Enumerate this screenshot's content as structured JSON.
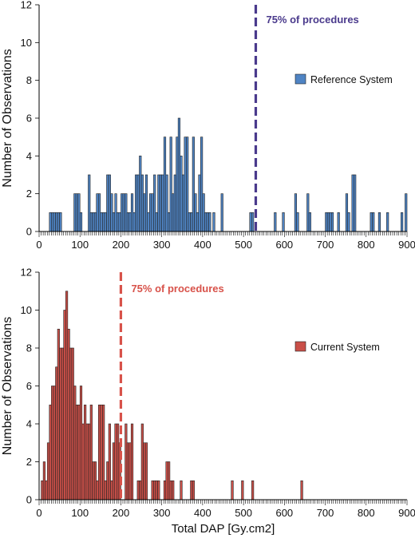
{
  "chart_data": [
    {
      "type": "bar",
      "ylabel": "Number of Observations",
      "xlabel": "",
      "xlim": [
        0,
        900
      ],
      "ylim": [
        0,
        12
      ],
      "bin_width": 5,
      "xticks": [
        "0",
        "100",
        "200",
        "300",
        "400",
        "500",
        "600",
        "700",
        "800",
        "900"
      ],
      "yticks": [
        "0",
        "2",
        "4",
        "6",
        "8",
        "10",
        "12"
      ],
      "legend": {
        "label": "Reference System",
        "placement": "right"
      },
      "bar_color": "#4f84c4",
      "marker": {
        "x": 530,
        "label": "75% of procedures",
        "color": "#4a3a8c"
      },
      "bins": [
        {
          "x": 25,
          "value": 1
        },
        {
          "x": 30,
          "value": 1
        },
        {
          "x": 35,
          "value": 1
        },
        {
          "x": 40,
          "value": 1
        },
        {
          "x": 45,
          "value": 1
        },
        {
          "x": 50,
          "value": 1
        },
        {
          "x": 85,
          "value": 2
        },
        {
          "x": 90,
          "value": 2
        },
        {
          "x": 95,
          "value": 2
        },
        {
          "x": 100,
          "value": 1
        },
        {
          "x": 120,
          "value": 3
        },
        {
          "x": 125,
          "value": 1
        },
        {
          "x": 130,
          "value": 1
        },
        {
          "x": 135,
          "value": 1
        },
        {
          "x": 140,
          "value": 2
        },
        {
          "x": 145,
          "value": 2
        },
        {
          "x": 150,
          "value": 1
        },
        {
          "x": 155,
          "value": 1
        },
        {
          "x": 160,
          "value": 1
        },
        {
          "x": 165,
          "value": 3
        },
        {
          "x": 170,
          "value": 3
        },
        {
          "x": 175,
          "value": 2
        },
        {
          "x": 180,
          "value": 1
        },
        {
          "x": 185,
          "value": 2
        },
        {
          "x": 190,
          "value": 1
        },
        {
          "x": 195,
          "value": 1
        },
        {
          "x": 200,
          "value": 2
        },
        {
          "x": 205,
          "value": 2
        },
        {
          "x": 210,
          "value": 2
        },
        {
          "x": 215,
          "value": 1
        },
        {
          "x": 220,
          "value": 1
        },
        {
          "x": 225,
          "value": 2
        },
        {
          "x": 230,
          "value": 1
        },
        {
          "x": 235,
          "value": 3
        },
        {
          "x": 240,
          "value": 3
        },
        {
          "x": 245,
          "value": 4
        },
        {
          "x": 250,
          "value": 3
        },
        {
          "x": 255,
          "value": 2
        },
        {
          "x": 260,
          "value": 3
        },
        {
          "x": 265,
          "value": 1
        },
        {
          "x": 270,
          "value": 2
        },
        {
          "x": 275,
          "value": 2
        },
        {
          "x": 280,
          "value": 3
        },
        {
          "x": 285,
          "value": 1
        },
        {
          "x": 290,
          "value": 3
        },
        {
          "x": 295,
          "value": 3
        },
        {
          "x": 300,
          "value": 3
        },
        {
          "x": 305,
          "value": 5
        },
        {
          "x": 310,
          "value": 3
        },
        {
          "x": 315,
          "value": 1
        },
        {
          "x": 320,
          "value": 5
        },
        {
          "x": 325,
          "value": 2
        },
        {
          "x": 330,
          "value": 3
        },
        {
          "x": 335,
          "value": 5
        },
        {
          "x": 340,
          "value": 6
        },
        {
          "x": 345,
          "value": 4
        },
        {
          "x": 350,
          "value": 3
        },
        {
          "x": 355,
          "value": 5
        },
        {
          "x": 360,
          "value": 5
        },
        {
          "x": 365,
          "value": 1
        },
        {
          "x": 370,
          "value": 1
        },
        {
          "x": 375,
          "value": 5
        },
        {
          "x": 380,
          "value": 2
        },
        {
          "x": 385,
          "value": 1
        },
        {
          "x": 390,
          "value": 3
        },
        {
          "x": 395,
          "value": 5
        },
        {
          "x": 400,
          "value": 2
        },
        {
          "x": 405,
          "value": 1
        },
        {
          "x": 410,
          "value": 1
        },
        {
          "x": 415,
          "value": 1
        },
        {
          "x": 425,
          "value": 1
        },
        {
          "x": 445,
          "value": 2
        },
        {
          "x": 515,
          "value": 1
        },
        {
          "x": 520,
          "value": 1
        },
        {
          "x": 575,
          "value": 1
        },
        {
          "x": 595,
          "value": 1
        },
        {
          "x": 625,
          "value": 2
        },
        {
          "x": 630,
          "value": 1
        },
        {
          "x": 655,
          "value": 2
        },
        {
          "x": 660,
          "value": 1
        },
        {
          "x": 700,
          "value": 1
        },
        {
          "x": 705,
          "value": 1
        },
        {
          "x": 710,
          "value": 1
        },
        {
          "x": 715,
          "value": 1
        },
        {
          "x": 730,
          "value": 1
        },
        {
          "x": 750,
          "value": 2
        },
        {
          "x": 755,
          "value": 1
        },
        {
          "x": 765,
          "value": 3
        },
        {
          "x": 770,
          "value": 3
        },
        {
          "x": 810,
          "value": 1
        },
        {
          "x": 815,
          "value": 1
        },
        {
          "x": 830,
          "value": 1
        },
        {
          "x": 850,
          "value": 1
        },
        {
          "x": 885,
          "value": 1
        },
        {
          "x": 895,
          "value": 2
        }
      ]
    },
    {
      "type": "bar",
      "ylabel": "Number of Observations",
      "xlabel": "Total DAP [Gy.cm2]",
      "xlim": [
        0,
        900
      ],
      "ylim": [
        0,
        12
      ],
      "bin_width": 5,
      "xticks": [
        "0",
        "100",
        "200",
        "300",
        "400",
        "500",
        "600",
        "700",
        "800",
        "900"
      ],
      "yticks": [
        "0",
        "2",
        "4",
        "6",
        "8",
        "10",
        "12"
      ],
      "legend": {
        "label": "Current System",
        "placement": "right"
      },
      "bar_color": "#c94f48",
      "marker": {
        "x": 200,
        "label": "75% of procedures",
        "color": "#d8524a"
      },
      "bins": [
        {
          "x": 5,
          "value": 1
        },
        {
          "x": 10,
          "value": 2
        },
        {
          "x": 15,
          "value": 1
        },
        {
          "x": 20,
          "value": 3
        },
        {
          "x": 25,
          "value": 5
        },
        {
          "x": 30,
          "value": 6
        },
        {
          "x": 35,
          "value": 6
        },
        {
          "x": 40,
          "value": 7
        },
        {
          "x": 45,
          "value": 9
        },
        {
          "x": 50,
          "value": 8
        },
        {
          "x": 55,
          "value": 8
        },
        {
          "x": 60,
          "value": 10
        },
        {
          "x": 65,
          "value": 11
        },
        {
          "x": 70,
          "value": 9
        },
        {
          "x": 75,
          "value": 8
        },
        {
          "x": 80,
          "value": 8
        },
        {
          "x": 85,
          "value": 6
        },
        {
          "x": 90,
          "value": 5
        },
        {
          "x": 95,
          "value": 5
        },
        {
          "x": 100,
          "value": 6
        },
        {
          "x": 105,
          "value": 4
        },
        {
          "x": 110,
          "value": 5
        },
        {
          "x": 115,
          "value": 4
        },
        {
          "x": 120,
          "value": 4
        },
        {
          "x": 125,
          "value": 5
        },
        {
          "x": 130,
          "value": 2
        },
        {
          "x": 135,
          "value": 2
        },
        {
          "x": 140,
          "value": 1
        },
        {
          "x": 145,
          "value": 5
        },
        {
          "x": 150,
          "value": 5
        },
        {
          "x": 155,
          "value": 5
        },
        {
          "x": 160,
          "value": 1
        },
        {
          "x": 165,
          "value": 2
        },
        {
          "x": 170,
          "value": 4
        },
        {
          "x": 175,
          "value": 1
        },
        {
          "x": 180,
          "value": 3
        },
        {
          "x": 185,
          "value": 4
        },
        {
          "x": 190,
          "value": 4
        },
        {
          "x": 195,
          "value": 3
        },
        {
          "x": 210,
          "value": 4
        },
        {
          "x": 215,
          "value": 3
        },
        {
          "x": 220,
          "value": 3
        },
        {
          "x": 225,
          "value": 4
        },
        {
          "x": 240,
          "value": 1
        },
        {
          "x": 245,
          "value": 1
        },
        {
          "x": 250,
          "value": 4
        },
        {
          "x": 255,
          "value": 3
        },
        {
          "x": 260,
          "value": 3
        },
        {
          "x": 275,
          "value": 1
        },
        {
          "x": 280,
          "value": 1
        },
        {
          "x": 285,
          "value": 1
        },
        {
          "x": 290,
          "value": 1
        },
        {
          "x": 305,
          "value": 1
        },
        {
          "x": 310,
          "value": 2
        },
        {
          "x": 315,
          "value": 2
        },
        {
          "x": 320,
          "value": 1
        },
        {
          "x": 325,
          "value": 1
        },
        {
          "x": 345,
          "value": 1
        },
        {
          "x": 370,
          "value": 1
        },
        {
          "x": 375,
          "value": 1
        },
        {
          "x": 470,
          "value": 1
        },
        {
          "x": 495,
          "value": 1
        },
        {
          "x": 520,
          "value": 1
        },
        {
          "x": 640,
          "value": 1
        }
      ]
    }
  ]
}
